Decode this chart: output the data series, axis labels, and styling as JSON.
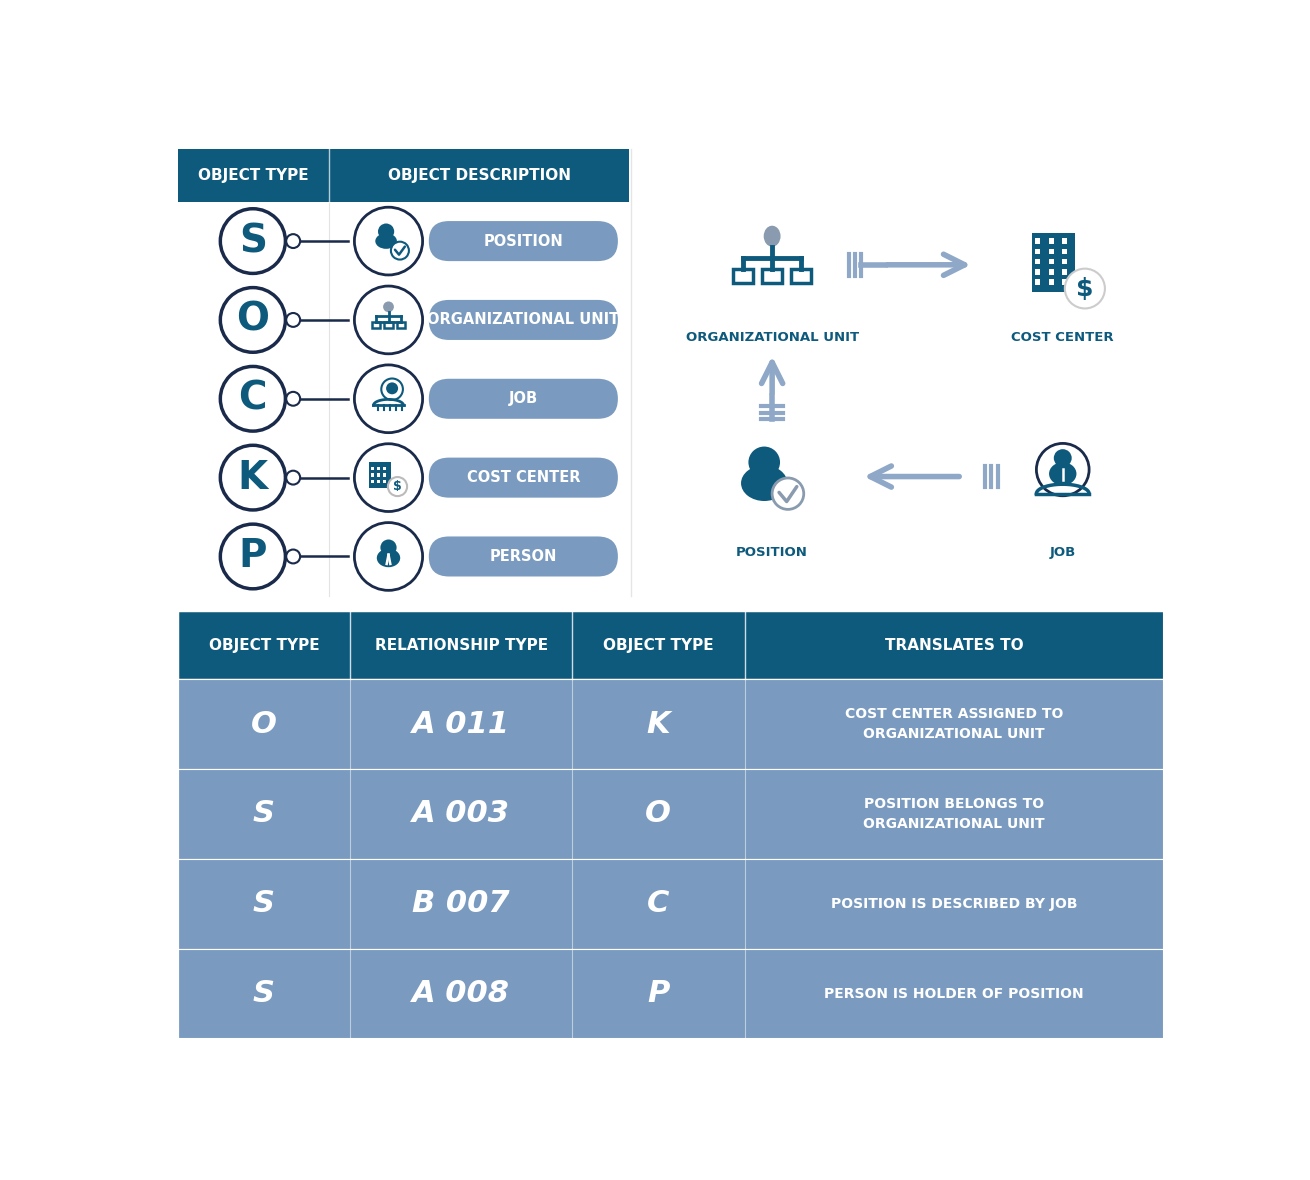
{
  "bg_color": "#ffffff",
  "dark_blue": "#0e5a7d",
  "medium_blue": "#7a9bbf",
  "header_bg": "#0e5a7d",
  "row_bg": "#7a9bbf",
  "object_types": [
    "S",
    "O",
    "C",
    "K",
    "P"
  ],
  "object_descriptions": [
    "POSITION",
    "ORGANIZATIONAL UNIT",
    "JOB",
    "COST CENTER",
    "PERSON"
  ],
  "bottom_table_headers": [
    "OBJECT TYPE",
    "RELATIONSHIP TYPE",
    "OBJECT TYPE",
    "TRANSLATES TO"
  ],
  "bottom_rows": [
    [
      "O",
      "A 011",
      "K",
      "COST CENTER ASSIGNED TO\nORGANIZATIONAL UNIT"
    ],
    [
      "S",
      "A 003",
      "O",
      "POSITION BELONGS TO\nORGANIZATIONAL UNIT"
    ],
    [
      "S",
      "B 007",
      "C",
      "POSITION IS DESCRIBED BY JOB"
    ],
    [
      "S",
      "A 008",
      "P",
      "PERSON IS HOLDER OF POSITION"
    ]
  ],
  "arrow_color": "#8fa8c8",
  "icon_color": "#0e5a7d",
  "gray_head": "#8a9baf"
}
